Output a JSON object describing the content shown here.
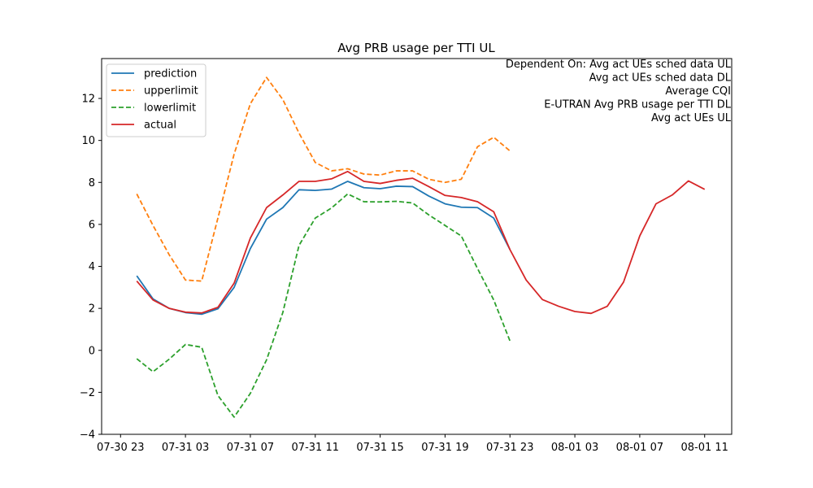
{
  "chart_data": {
    "type": "line",
    "title": "Avg PRB usage per TTI UL",
    "xlabel": "",
    "ylabel": "",
    "x_tick_labels": [
      "07-30 23",
      "07-31 03",
      "07-31 07",
      "07-31 11",
      "07-31 15",
      "07-31 19",
      "07-31 23",
      "08-01 03",
      "08-01 07",
      "08-01 11"
    ],
    "y_ticks": [
      -4,
      -2,
      0,
      2,
      4,
      6,
      8,
      10,
      12
    ],
    "xlim": [
      "2024-07-30 21:50",
      "2024-08-01 12:40"
    ],
    "ylim": [
      -4,
      13.9
    ],
    "grid": false,
    "legend_position": "top-left",
    "annotations": [
      "Dependent On: Avg act UEs sched data UL",
      "Avg act UEs sched data DL",
      "Average CQI",
      "E-UTRAN Avg PRB usage per TTI DL",
      "Avg act UEs UL"
    ],
    "x": [
      "07-31 00",
      "07-31 01",
      "07-31 02",
      "07-31 03",
      "07-31 04",
      "07-31 05",
      "07-31 06",
      "07-31 07",
      "07-31 08",
      "07-31 09",
      "07-31 10",
      "07-31 11",
      "07-31 12",
      "07-31 13",
      "07-31 14",
      "07-31 15",
      "07-31 16",
      "07-31 17",
      "07-31 18",
      "07-31 19",
      "07-31 20",
      "07-31 21",
      "07-31 22",
      "07-31 23",
      "08-01 00",
      "08-01 01",
      "08-01 02",
      "08-01 03",
      "08-01 04",
      "08-01 05",
      "08-01 06",
      "08-01 07",
      "08-01 08",
      "08-01 09",
      "08-01 10",
      "08-01 11"
    ],
    "series": [
      {
        "name": "prediction",
        "color": "#1f77b4",
        "dash": "solid",
        "values": [
          3.55,
          2.45,
          2.0,
          1.8,
          1.72,
          1.98,
          3.0,
          4.85,
          6.25,
          6.8,
          7.65,
          7.62,
          7.68,
          8.05,
          7.75,
          7.7,
          7.82,
          7.8,
          7.35,
          6.98,
          6.82,
          6.8,
          6.3,
          4.8,
          null,
          null,
          null,
          null,
          null,
          null,
          null,
          null,
          null,
          null,
          null,
          null
        ]
      },
      {
        "name": "upperlimit",
        "color": "#ff7f0e",
        "dash": "dashed",
        "values": [
          7.45,
          5.95,
          4.55,
          3.35,
          3.3,
          6.3,
          9.35,
          11.75,
          13.0,
          11.95,
          10.35,
          8.95,
          8.55,
          8.65,
          8.4,
          8.35,
          8.55,
          8.55,
          8.15,
          8.0,
          8.15,
          9.7,
          10.15,
          9.5,
          null,
          null,
          null,
          null,
          null,
          null,
          null,
          null,
          null,
          null,
          null,
          null
        ]
      },
      {
        "name": "lowerlimit",
        "color": "#2ca02c",
        "dash": "dashed",
        "values": [
          -0.4,
          -1.02,
          -0.42,
          0.28,
          0.15,
          -2.15,
          -3.18,
          -2.05,
          -0.45,
          1.8,
          5.0,
          6.3,
          6.78,
          7.45,
          7.08,
          7.07,
          7.1,
          7.02,
          6.45,
          5.95,
          5.45,
          3.9,
          2.4,
          0.45,
          null,
          null,
          null,
          null,
          null,
          null,
          null,
          null,
          null,
          null,
          null,
          null
        ]
      },
      {
        "name": "actual",
        "color": "#d62728",
        "dash": "solid",
        "values": [
          3.3,
          2.4,
          2.0,
          1.82,
          1.78,
          2.05,
          3.2,
          5.35,
          6.8,
          7.4,
          8.05,
          8.05,
          8.17,
          8.52,
          8.05,
          7.95,
          8.1,
          8.2,
          7.8,
          7.38,
          7.28,
          7.08,
          6.6,
          4.8,
          3.35,
          2.42,
          2.1,
          1.85,
          1.76,
          2.1,
          3.25,
          5.45,
          6.98,
          7.4,
          8.07,
          7.67
        ]
      }
    ]
  }
}
